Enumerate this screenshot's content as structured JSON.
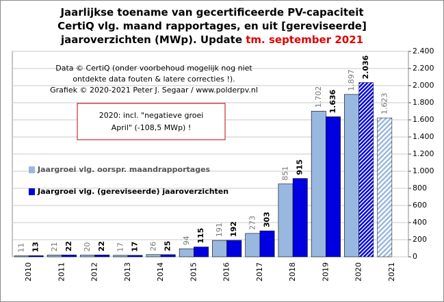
{
  "chart_data": {
    "type": "bar",
    "title_lines": [
      "Jaarlijkse toename van gecertificeerde PV-capaciteit",
      "CertiQ vlg. maand rapportages, en uit [gereviseerde]",
      "jaaroverzichten (MWp). Update "
    ],
    "title_highlight": "tm. september 2021",
    "source_lines": [
      "Data © CertiQ (onder voorbehoud mogelijk nog niet",
      "ontdekte data fouten & latere correcties !).",
      "Grafiek © 2020-2021 Peter J. Segaar / www.polderpv.nl"
    ],
    "note_lines": [
      "2020: incl. \"negatieve groei",
      "April\" (-108,5 MWp) !"
    ],
    "categories": [
      "2010",
      "2011",
      "2012",
      "2013",
      "2014",
      "2015",
      "2016",
      "2017",
      "2018",
      "2019",
      "2020",
      "2021"
    ],
    "series": [
      {
        "name": "Jaargroei vlg. oorspr. maandrapportages",
        "color": "#99b8e0",
        "values": [
          11,
          21,
          20,
          17,
          26,
          94,
          191,
          273,
          851,
          1702,
          1897,
          1623
        ],
        "value_labels": [
          "11",
          "21",
          "20",
          "17",
          "26",
          "94",
          "191",
          "273",
          "851",
          "1.702",
          "1.897",
          "1.623"
        ]
      },
      {
        "name": "Jaargroei vlg. (gereviseerde) jaaroverzichten",
        "color": "#0000e0",
        "values": [
          13,
          22,
          22,
          17,
          25,
          115,
          192,
          303,
          915,
          1636,
          2036,
          null
        ],
        "value_labels": [
          "13",
          "22",
          "22",
          "17",
          "25",
          "115",
          "192",
          "303",
          "915",
          "1.636",
          "2.036",
          null
        ]
      }
    ],
    "ylim": [
      0,
      2400
    ],
    "yticks": [
      0,
      200,
      400,
      600,
      800,
      {
        "value": 1000,
        "label": "1.000"
      },
      {
        "value": 1200,
        "label": "1.200"
      },
      {
        "value": 1400,
        "label": "1.400"
      },
      {
        "value": 1600,
        "label": "1.600"
      },
      {
        "value": 1800,
        "label": "1.800"
      },
      {
        "value": 2000,
        "label": "2.000"
      },
      {
        "value": 2200,
        "label": "2.200"
      },
      {
        "value": 2400,
        "label": "2.400"
      }
    ],
    "grid": true
  }
}
